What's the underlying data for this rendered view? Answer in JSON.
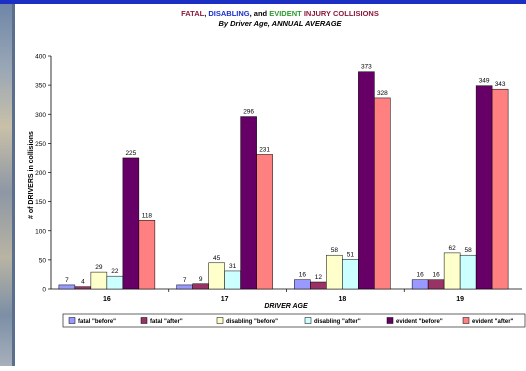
{
  "chart_data": {
    "type": "bar",
    "title_parts": [
      {
        "text": "FATAL",
        "color": "#8b1a3a"
      },
      {
        "text": ", ",
        "color": "#000000"
      },
      {
        "text": "DISABLING",
        "color": "#1a2fd0"
      },
      {
        "text": ", and ",
        "color": "#000000"
      },
      {
        "text": "EVIDENT",
        "color": "#2e9a2e"
      },
      {
        "text": " INJURY COLLISIONS",
        "color": "#8b1a3a"
      }
    ],
    "subtitle": "By Driver Age, ANNUAL AVERAGE",
    "xlabel": "DRIVER AGE",
    "ylabel": "# of DRIVERS in collisions",
    "ylim": [
      0,
      400
    ],
    "yticks": [
      "0",
      "50",
      "100",
      "150",
      "200",
      "250",
      "300",
      "350",
      "400"
    ],
    "categories": [
      "16",
      "17",
      "18",
      "19"
    ],
    "series": [
      {
        "name": "fatal \"before\"",
        "color": "#9999ff",
        "values": [
          7,
          7,
          16,
          16
        ]
      },
      {
        "name": "fatal \"after\"",
        "color": "#993366",
        "values": [
          4,
          9,
          12,
          16
        ]
      },
      {
        "name": "disabling \"before\"",
        "color": "#ffffcc",
        "values": [
          29,
          45,
          58,
          62
        ]
      },
      {
        "name": "disabling \"after\"",
        "color": "#ccffff",
        "values": [
          22,
          31,
          51,
          58
        ]
      },
      {
        "name": "evident \"before\"",
        "color": "#660066",
        "values": [
          225,
          296,
          373,
          349
        ]
      },
      {
        "name": "evident \"after\"",
        "color": "#ff8080",
        "values": [
          118,
          231,
          328,
          343
        ]
      }
    ],
    "grid": false,
    "legend_position": "bottom"
  }
}
